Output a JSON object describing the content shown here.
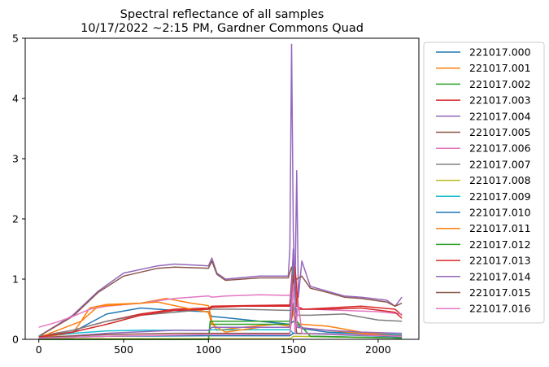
{
  "chart_data": {
    "type": "line",
    "title": "Spectral reflectance of all samples",
    "subtitle": "10/17/2022 ~2:15 PM, Gardner Commons Quad",
    "xlabel": "",
    "ylabel": "",
    "xlim": [
      -80,
      2240
    ],
    "ylim": [
      0,
      5
    ],
    "xticks": [
      0,
      500,
      1000,
      1500,
      2000
    ],
    "yticks": [
      0,
      1,
      2,
      3,
      4,
      5
    ],
    "grid": false,
    "legend_position": "outside-right",
    "series": [
      {
        "name": "221017.000",
        "color": "#1f77b4",
        "points": [
          [
            0,
            0.05
          ],
          [
            200,
            0.12
          ],
          [
            400,
            0.42
          ],
          [
            600,
            0.52
          ],
          [
            800,
            0.48
          ],
          [
            1000,
            0.46
          ],
          [
            1020,
            0.38
          ],
          [
            1100,
            0.36
          ],
          [
            1300,
            0.3
          ],
          [
            1480,
            0.25
          ],
          [
            1500,
            0.3
          ],
          [
            1550,
            0.18
          ],
          [
            1700,
            0.12
          ],
          [
            1900,
            0.1
          ],
          [
            2100,
            0.06
          ],
          [
            2140,
            0.05
          ]
        ]
      },
      {
        "name": "221017.001",
        "color": "#ff7f0e",
        "points": [
          [
            0,
            0.03
          ],
          [
            200,
            0.1
          ],
          [
            250,
            0.3
          ],
          [
            300,
            0.52
          ],
          [
            400,
            0.58
          ],
          [
            600,
            0.6
          ],
          [
            750,
            0.68
          ],
          [
            900,
            0.6
          ],
          [
            1000,
            0.56
          ],
          [
            1020,
            0.3
          ],
          [
            1050,
            0.15
          ],
          [
            1200,
            0.2
          ],
          [
            1400,
            0.25
          ],
          [
            1480,
            0.22
          ],
          [
            1500,
            0.5
          ],
          [
            1520,
            0.25
          ],
          [
            1550,
            0.25
          ],
          [
            1700,
            0.22
          ],
          [
            1900,
            0.12
          ],
          [
            2100,
            0.08
          ],
          [
            2140,
            0.06
          ]
        ]
      },
      {
        "name": "221017.002",
        "color": "#2ca02c",
        "points": [
          [
            0,
            0.0
          ],
          [
            1000,
            0.0
          ],
          [
            1010,
            0.25
          ],
          [
            1100,
            0.25
          ],
          [
            1480,
            0.25
          ],
          [
            1500,
            1.3
          ],
          [
            1520,
            0.3
          ],
          [
            1600,
            0.05
          ],
          [
            2140,
            0.02
          ]
        ]
      },
      {
        "name": "221017.003",
        "color": "#d62728",
        "points": [
          [
            0,
            0.05
          ],
          [
            200,
            0.15
          ],
          [
            400,
            0.3
          ],
          [
            600,
            0.42
          ],
          [
            800,
            0.5
          ],
          [
            1000,
            0.52
          ],
          [
            1020,
            0.55
          ],
          [
            1200,
            0.56
          ],
          [
            1480,
            0.57
          ],
          [
            1500,
            1.4
          ],
          [
            1520,
            0.55
          ],
          [
            1560,
            0.5
          ],
          [
            1700,
            0.52
          ],
          [
            1900,
            0.55
          ],
          [
            2100,
            0.5
          ],
          [
            2140,
            0.4
          ]
        ]
      },
      {
        "name": "221017.004",
        "color": "#9467bd",
        "points": [
          [
            0,
            0.05
          ],
          [
            200,
            0.4
          ],
          [
            350,
            0.8
          ],
          [
            500,
            1.1
          ],
          [
            700,
            1.22
          ],
          [
            800,
            1.25
          ],
          [
            1000,
            1.22
          ],
          [
            1020,
            1.35
          ],
          [
            1050,
            1.1
          ],
          [
            1100,
            1.0
          ],
          [
            1300,
            1.05
          ],
          [
            1470,
            1.05
          ],
          [
            1480,
            1.5
          ],
          [
            1490,
            4.9
          ],
          [
            1500,
            1.8
          ],
          [
            1510,
            0.8
          ],
          [
            1520,
            2.8
          ],
          [
            1530,
            0.7
          ],
          [
            1550,
            1.3
          ],
          [
            1600,
            0.88
          ],
          [
            1700,
            0.8
          ],
          [
            1800,
            0.72
          ],
          [
            1900,
            0.7
          ],
          [
            2050,
            0.65
          ],
          [
            2100,
            0.55
          ],
          [
            2140,
            0.7
          ]
        ]
      },
      {
        "name": "221017.005",
        "color": "#8c564b",
        "points": [
          [
            0,
            0.05
          ],
          [
            200,
            0.38
          ],
          [
            350,
            0.78
          ],
          [
            500,
            1.05
          ],
          [
            700,
            1.18
          ],
          [
            800,
            1.2
          ],
          [
            1000,
            1.18
          ],
          [
            1020,
            1.3
          ],
          [
            1050,
            1.08
          ],
          [
            1100,
            0.98
          ],
          [
            1300,
            1.02
          ],
          [
            1470,
            1.02
          ],
          [
            1490,
            1.2
          ],
          [
            1500,
            1.0
          ],
          [
            1520,
            1.0
          ],
          [
            1550,
            1.05
          ],
          [
            1600,
            0.85
          ],
          [
            1700,
            0.78
          ],
          [
            1800,
            0.7
          ],
          [
            1900,
            0.68
          ],
          [
            2050,
            0.62
          ],
          [
            2100,
            0.55
          ],
          [
            2140,
            0.6
          ]
        ]
      },
      {
        "name": "221017.006",
        "color": "#e377c2",
        "points": [
          [
            0,
            0.2
          ],
          [
            100,
            0.28
          ],
          [
            200,
            0.38
          ],
          [
            300,
            0.5
          ],
          [
            400,
            0.55
          ],
          [
            600,
            0.6
          ],
          [
            800,
            0.68
          ],
          [
            1000,
            0.72
          ],
          [
            1020,
            0.7
          ],
          [
            1100,
            0.72
          ],
          [
            1300,
            0.74
          ],
          [
            1480,
            0.73
          ],
          [
            1500,
            0.4
          ],
          [
            1520,
            0.5
          ],
          [
            1600,
            0.5
          ],
          [
            1800,
            0.48
          ],
          [
            2000,
            0.46
          ],
          [
            2140,
            0.42
          ]
        ]
      },
      {
        "name": "221017.007",
        "color": "#7f7f7f",
        "points": [
          [
            0,
            0.05
          ],
          [
            200,
            0.15
          ],
          [
            400,
            0.3
          ],
          [
            600,
            0.4
          ],
          [
            800,
            0.45
          ],
          [
            1000,
            0.5
          ],
          [
            1020,
            0.5
          ],
          [
            1200,
            0.5
          ],
          [
            1480,
            0.48
          ],
          [
            1500,
            0.6
          ],
          [
            1520,
            0.4
          ],
          [
            1600,
            0.4
          ],
          [
            1800,
            0.42
          ],
          [
            2000,
            0.32
          ],
          [
            2140,
            0.3
          ]
        ]
      },
      {
        "name": "221017.008",
        "color": "#bcbd22",
        "points": [
          [
            0,
            0.01
          ],
          [
            1000,
            0.01
          ],
          [
            1480,
            0.01
          ],
          [
            1500,
            0.05
          ],
          [
            2140,
            0.02
          ]
        ]
      },
      {
        "name": "221017.009",
        "color": "#17becf",
        "points": [
          [
            0,
            0.05
          ],
          [
            200,
            0.1
          ],
          [
            400,
            0.14
          ],
          [
            600,
            0.15
          ],
          [
            1000,
            0.15
          ],
          [
            1020,
            0.16
          ],
          [
            1480,
            0.16
          ],
          [
            1500,
            0.1
          ],
          [
            1600,
            0.1
          ],
          [
            2140,
            0.08
          ]
        ]
      },
      {
        "name": "221017.010",
        "color": "#1f77b4",
        "points": [
          [
            0,
            0.02
          ],
          [
            400,
            0.05
          ],
          [
            1000,
            0.06
          ],
          [
            1480,
            0.06
          ],
          [
            1500,
            0.1
          ],
          [
            2140,
            0.04
          ]
        ]
      },
      {
        "name": "221017.011",
        "color": "#ff7f0e",
        "points": [
          [
            0,
            0.03
          ],
          [
            250,
            0.3
          ],
          [
            350,
            0.55
          ],
          [
            500,
            0.58
          ],
          [
            700,
            0.62
          ],
          [
            900,
            0.5
          ],
          [
            1000,
            0.45
          ],
          [
            1020,
            0.25
          ],
          [
            1100,
            0.12
          ],
          [
            1300,
            0.2
          ],
          [
            1480,
            0.2
          ],
          [
            1500,
            0.45
          ],
          [
            1520,
            0.2
          ],
          [
            1700,
            0.15
          ],
          [
            1900,
            0.1
          ],
          [
            2140,
            0.05
          ]
        ]
      },
      {
        "name": "221017.012",
        "color": "#2ca02c",
        "points": [
          [
            0,
            0.0
          ],
          [
            1000,
            0.0
          ],
          [
            1010,
            0.3
          ],
          [
            1480,
            0.3
          ],
          [
            1500,
            1.2
          ],
          [
            1520,
            0.3
          ],
          [
            1600,
            0.05
          ],
          [
            2140,
            0.02
          ]
        ]
      },
      {
        "name": "221017.013",
        "color": "#d62728",
        "points": [
          [
            0,
            0.04
          ],
          [
            200,
            0.12
          ],
          [
            400,
            0.25
          ],
          [
            600,
            0.4
          ],
          [
            800,
            0.48
          ],
          [
            1000,
            0.5
          ],
          [
            1020,
            0.53
          ],
          [
            1200,
            0.55
          ],
          [
            1480,
            0.55
          ],
          [
            1510,
            1.2
          ],
          [
            1530,
            0.5
          ],
          [
            1700,
            0.5
          ],
          [
            1900,
            0.52
          ],
          [
            2100,
            0.45
          ],
          [
            2140,
            0.35
          ]
        ]
      },
      {
        "name": "221017.014",
        "color": "#9467bd",
        "points": [
          [
            0,
            0.02
          ],
          [
            400,
            0.1
          ],
          [
            800,
            0.15
          ],
          [
            1000,
            0.15
          ],
          [
            1020,
            0.2
          ],
          [
            1100,
            0.2
          ],
          [
            1480,
            0.2
          ],
          [
            1500,
            1.5
          ],
          [
            1520,
            0.2
          ],
          [
            1700,
            0.15
          ],
          [
            1900,
            0.12
          ],
          [
            2140,
            0.1
          ]
        ]
      },
      {
        "name": "221017.015",
        "color": "#8c564b",
        "points": [
          [
            0,
            0.03
          ],
          [
            400,
            0.08
          ],
          [
            800,
            0.1
          ],
          [
            1000,
            0.1
          ],
          [
            1480,
            0.1
          ],
          [
            1500,
            0.6
          ],
          [
            1520,
            0.1
          ],
          [
            2140,
            0.06
          ]
        ]
      },
      {
        "name": "221017.016",
        "color": "#e377c2",
        "points": [
          [
            0,
            0.02
          ],
          [
            400,
            0.05
          ],
          [
            1000,
            0.08
          ],
          [
            1480,
            0.08
          ],
          [
            1500,
            0.9
          ],
          [
            1510,
            0.1
          ],
          [
            1530,
            0.6
          ],
          [
            1550,
            0.1
          ],
          [
            2140,
            0.05
          ]
        ]
      }
    ]
  }
}
